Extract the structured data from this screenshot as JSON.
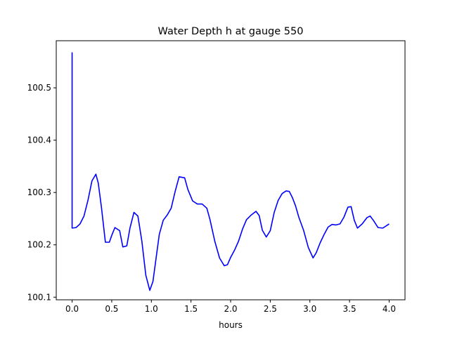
{
  "chart_data": {
    "type": "line",
    "title": "Water Depth h at gauge 550",
    "xlabel": "hours",
    "ylabel": "",
    "xlim": [
      -0.2,
      4.2
    ],
    "ylim": [
      100.095,
      100.59
    ],
    "xticks": [
      0.0,
      0.5,
      1.0,
      1.5,
      2.0,
      2.5,
      3.0,
      3.5,
      4.0
    ],
    "xtick_labels": [
      "0.0",
      "0.5",
      "1.0",
      "1.5",
      "2.0",
      "2.5",
      "3.0",
      "3.5",
      "4.0"
    ],
    "yticks": [
      100.1,
      100.2,
      100.3,
      100.4,
      100.5
    ],
    "ytick_labels": [
      "100.1",
      "100.2",
      "100.3",
      "100.4",
      "100.5"
    ],
    "grid": false,
    "legend": "none",
    "series": [
      {
        "color": "#0000ff",
        "x": [
          0.0,
          0.0,
          0.0,
          0.05,
          0.1,
          0.15,
          0.2,
          0.25,
          0.3,
          0.33,
          0.37,
          0.42,
          0.47,
          0.5,
          0.54,
          0.6,
          0.64,
          0.69,
          0.73,
          0.78,
          0.83,
          0.88,
          0.93,
          0.98,
          1.02,
          1.06,
          1.1,
          1.15,
          1.2,
          1.25,
          1.3,
          1.35,
          1.42,
          1.46,
          1.52,
          1.58,
          1.64,
          1.7,
          1.74,
          1.8,
          1.86,
          1.92,
          1.96,
          2.0,
          2.05,
          2.1,
          2.15,
          2.2,
          2.26,
          2.32,
          2.36,
          2.4,
          2.45,
          2.5,
          2.55,
          2.6,
          2.65,
          2.7,
          2.74,
          2.78,
          2.82,
          2.86,
          2.92,
          2.98,
          3.04,
          3.08,
          3.13,
          3.18,
          3.23,
          3.28,
          3.33,
          3.38,
          3.43,
          3.48,
          3.52,
          3.56,
          3.6,
          3.66,
          3.72,
          3.76,
          3.8,
          3.86,
          3.92,
          3.97,
          4.0
        ],
        "y": [
          100.232,
          100.567,
          100.232,
          100.233,
          100.24,
          100.255,
          100.285,
          100.322,
          100.335,
          100.318,
          100.272,
          100.205,
          100.205,
          100.218,
          100.233,
          100.227,
          100.196,
          100.198,
          100.232,
          100.262,
          100.255,
          100.207,
          100.142,
          100.113,
          100.13,
          100.175,
          100.22,
          100.247,
          100.257,
          100.27,
          100.302,
          100.33,
          100.328,
          100.306,
          100.284,
          100.278,
          100.278,
          100.27,
          100.248,
          100.207,
          100.175,
          100.16,
          100.162,
          100.176,
          100.19,
          100.207,
          100.23,
          100.248,
          100.257,
          100.264,
          100.256,
          100.228,
          100.215,
          100.227,
          100.262,
          100.285,
          100.298,
          100.303,
          100.302,
          100.29,
          100.274,
          100.253,
          100.228,
          100.195,
          100.175,
          100.185,
          100.204,
          100.22,
          100.234,
          100.239,
          100.238,
          100.24,
          100.253,
          100.272,
          100.273,
          100.247,
          100.232,
          100.24,
          100.252,
          100.255,
          100.247,
          100.233,
          100.232,
          100.237,
          100.24
        ]
      }
    ]
  }
}
